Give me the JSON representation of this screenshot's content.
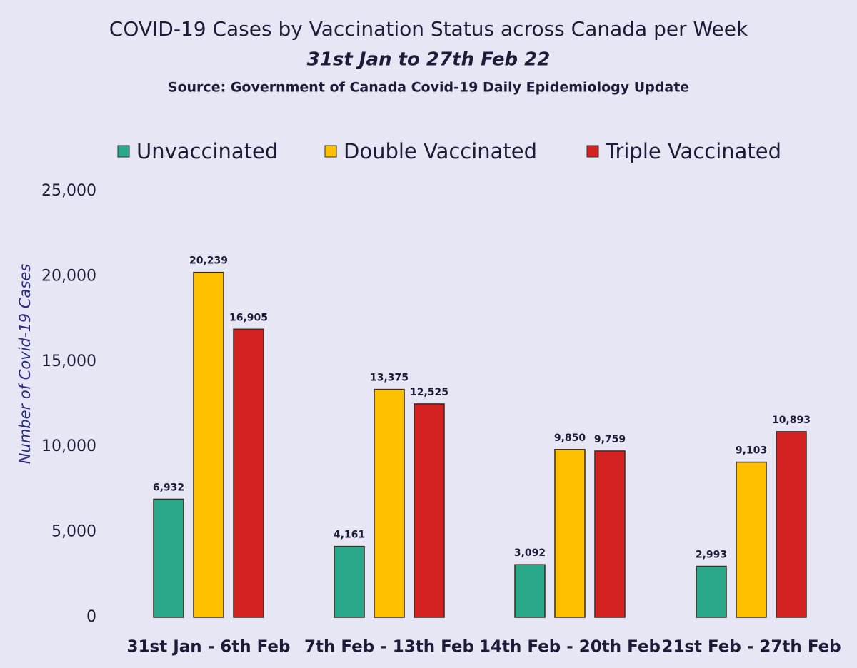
{
  "chart_data": {
    "type": "bar",
    "title": "COVID-19 Cases by Vaccination Status across Canada per Week",
    "subtitle": "31st Jan to 27th Feb 22",
    "source": "Source: Government of Canada  Covid-19 Daily Epidemiology Update",
    "y_label": "Number of Covid-19 Cases",
    "categories": [
      "31st Jan - 6th Feb",
      "7th Feb - 13th Feb",
      "14th Feb - 20th Feb",
      "21st Feb - 27th Feb"
    ],
    "series": [
      {
        "name": "Unvaccinated",
        "color": "#2aa88a",
        "values": [
          6932,
          4161,
          3092,
          2993
        ],
        "value_labels": [
          "6,932",
          "4,161",
          "3,092",
          "2,993"
        ]
      },
      {
        "name": "Double Vaccinated",
        "color": "#ffc000",
        "values": [
          20239,
          13375,
          9850,
          9103
        ],
        "value_labels": [
          "20,239",
          "13,375",
          "9,850",
          "9,103"
        ]
      },
      {
        "name": "Triple Vaccinated",
        "color": "#d42222",
        "values": [
          16905,
          12525,
          9759,
          10893
        ],
        "value_labels": [
          "16,905",
          "12,525",
          "9,759",
          "10,893"
        ]
      }
    ],
    "ylim": [
      0,
      25000
    ],
    "yticks": [
      0,
      {
        "value": 5000,
        "label": "5,000"
      },
      {
        "value": 10000,
        "label": "10,000"
      },
      {
        "value": 15000,
        "label": "15,000"
      },
      {
        "value": 20000,
        "label": "20,000"
      },
      {
        "value": 25000,
        "label": "25,000"
      }
    ],
    "grid": false,
    "legend": "top"
  }
}
